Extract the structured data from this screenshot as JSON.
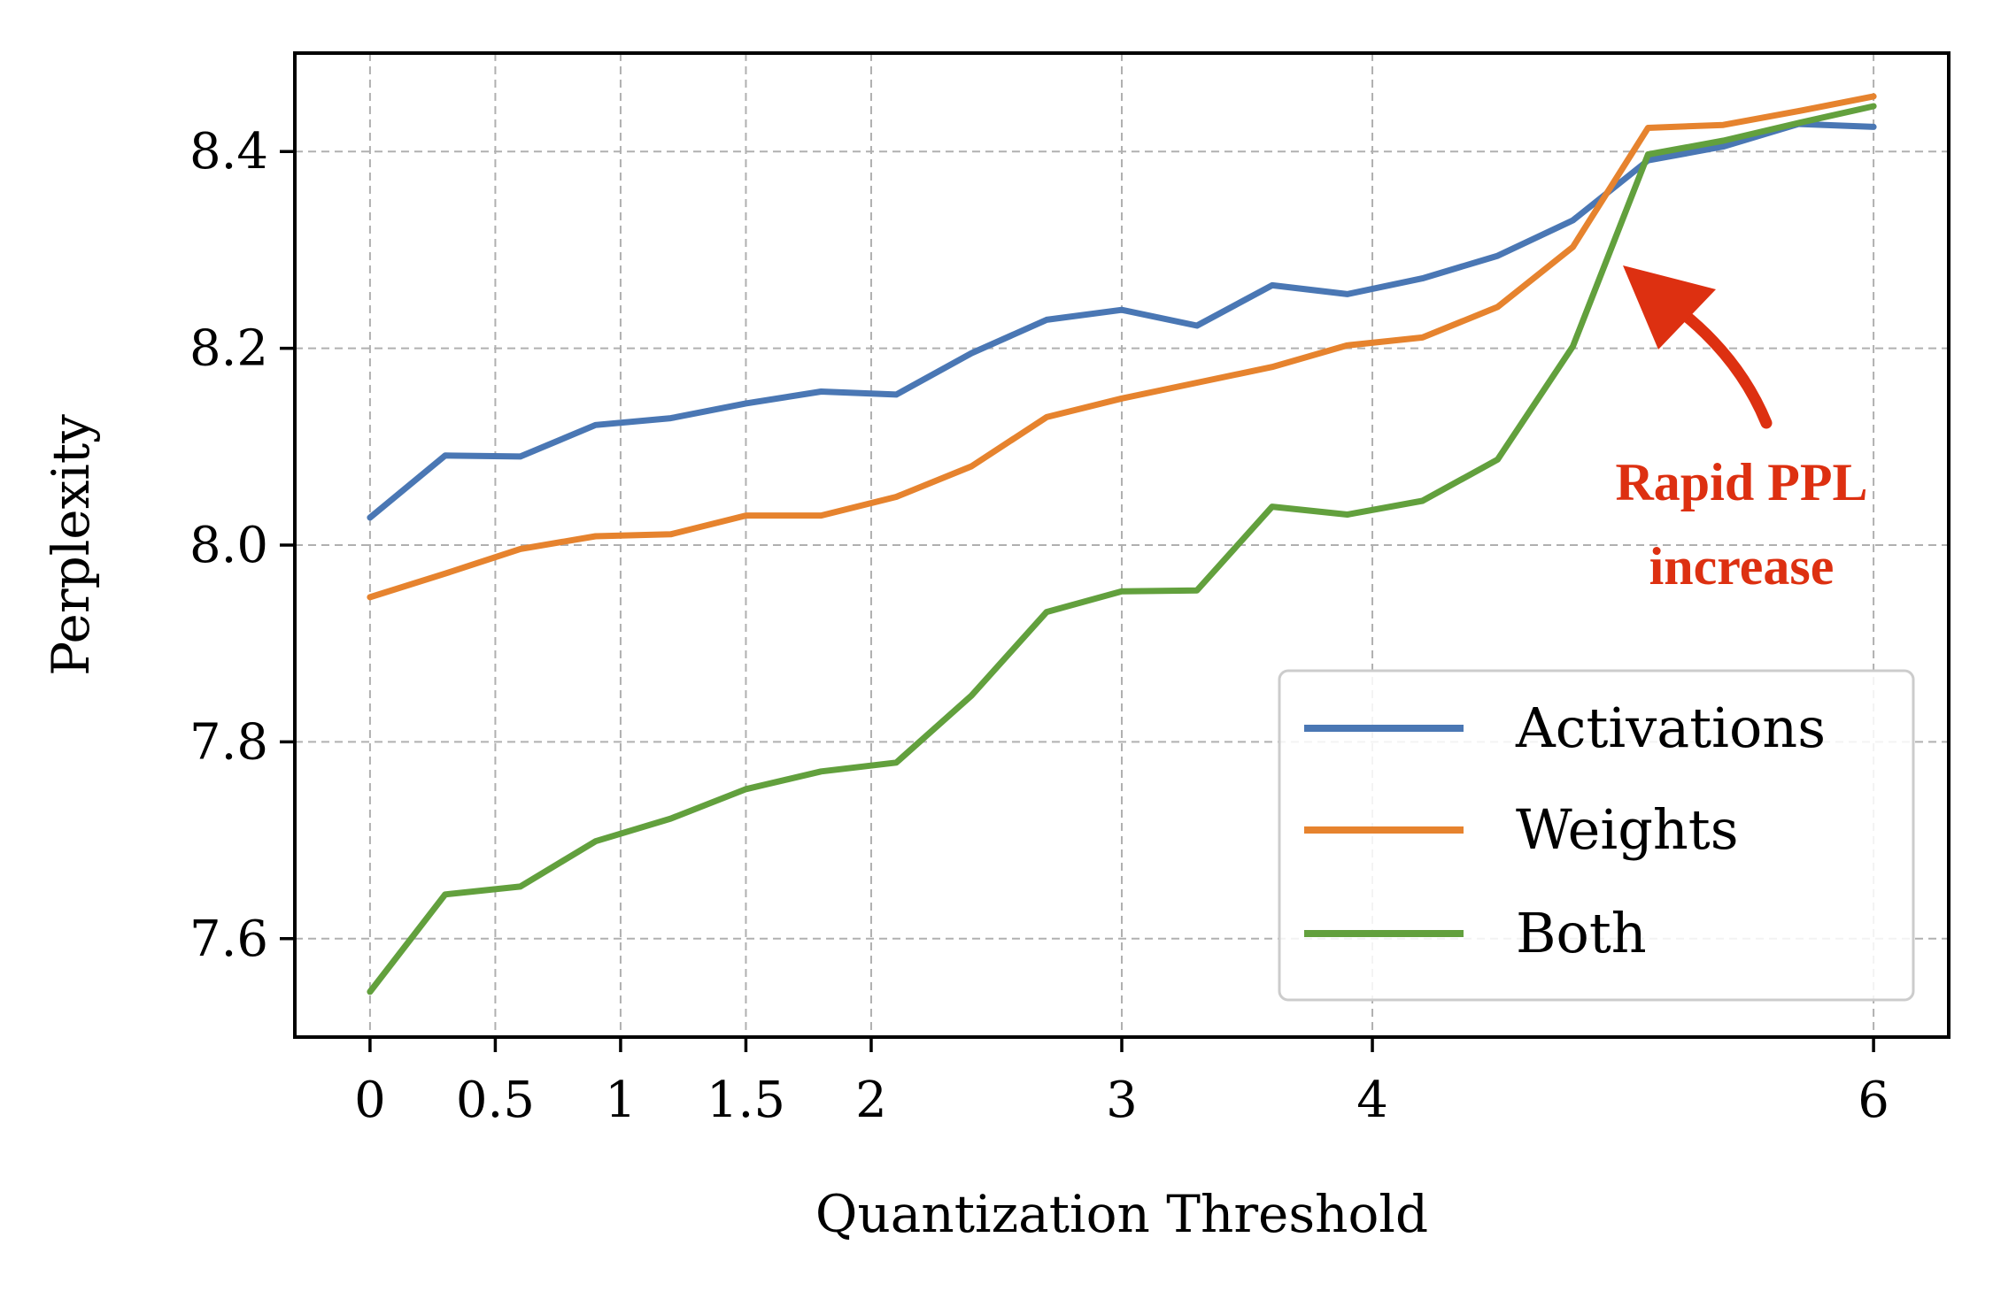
{
  "chart_data": {
    "type": "line",
    "title": "",
    "xlabel": "Quantization Threshold",
    "ylabel": "Perplexity",
    "xlim": [
      -0.3,
      6.3
    ],
    "ylim": [
      7.5,
      8.5
    ],
    "xticks": [
      0,
      0.5,
      1,
      1.5,
      2,
      3,
      4,
      6
    ],
    "xtick_labels": [
      "0",
      "0.5",
      "1",
      "1.5",
      "2",
      "3",
      "4",
      "6"
    ],
    "yticks": [
      7.6,
      7.8,
      8.0,
      8.2,
      8.4
    ],
    "ytick_labels": [
      "7.6",
      "7.8",
      "8.0",
      "8.2",
      "8.4"
    ],
    "grid": true,
    "legend_position": "lower-right",
    "x": [
      0,
      0.3,
      0.6,
      0.9,
      1.2,
      1.5,
      1.8,
      2.1,
      2.4,
      2.7,
      3.0,
      3.3,
      3.6,
      3.9,
      4.2,
      4.5,
      4.8,
      5.1,
      5.4,
      5.7,
      6.0
    ],
    "series": [
      {
        "name": "Activations",
        "color": "#4a77b4",
        "values": [
          8.028,
          8.091,
          8.09,
          8.122,
          8.129,
          8.144,
          8.156,
          8.153,
          8.195,
          8.229,
          8.239,
          8.223,
          8.264,
          8.255,
          8.271,
          8.294,
          8.33,
          8.391,
          8.405,
          8.428,
          8.425
        ]
      },
      {
        "name": "Weights",
        "color": "#e6832e",
        "values": [
          7.947,
          7.971,
          7.996,
          8.009,
          8.011,
          8.03,
          8.03,
          8.049,
          8.08,
          8.13,
          8.149,
          8.165,
          8.181,
          8.203,
          8.211,
          8.242,
          8.303,
          8.424,
          8.427,
          8.441,
          8.456
        ]
      },
      {
        "name": "Both",
        "color": "#62a03d",
        "values": [
          7.546,
          7.645,
          7.653,
          7.699,
          7.722,
          7.752,
          7.77,
          7.779,
          7.847,
          7.932,
          7.953,
          7.954,
          8.039,
          8.031,
          8.045,
          8.087,
          8.202,
          8.397,
          8.411,
          8.429,
          8.446
        ]
      }
    ],
    "annotation": {
      "text_line1": "Rapid PPL",
      "text_line2": "increase",
      "color": "#dd3011"
    }
  }
}
